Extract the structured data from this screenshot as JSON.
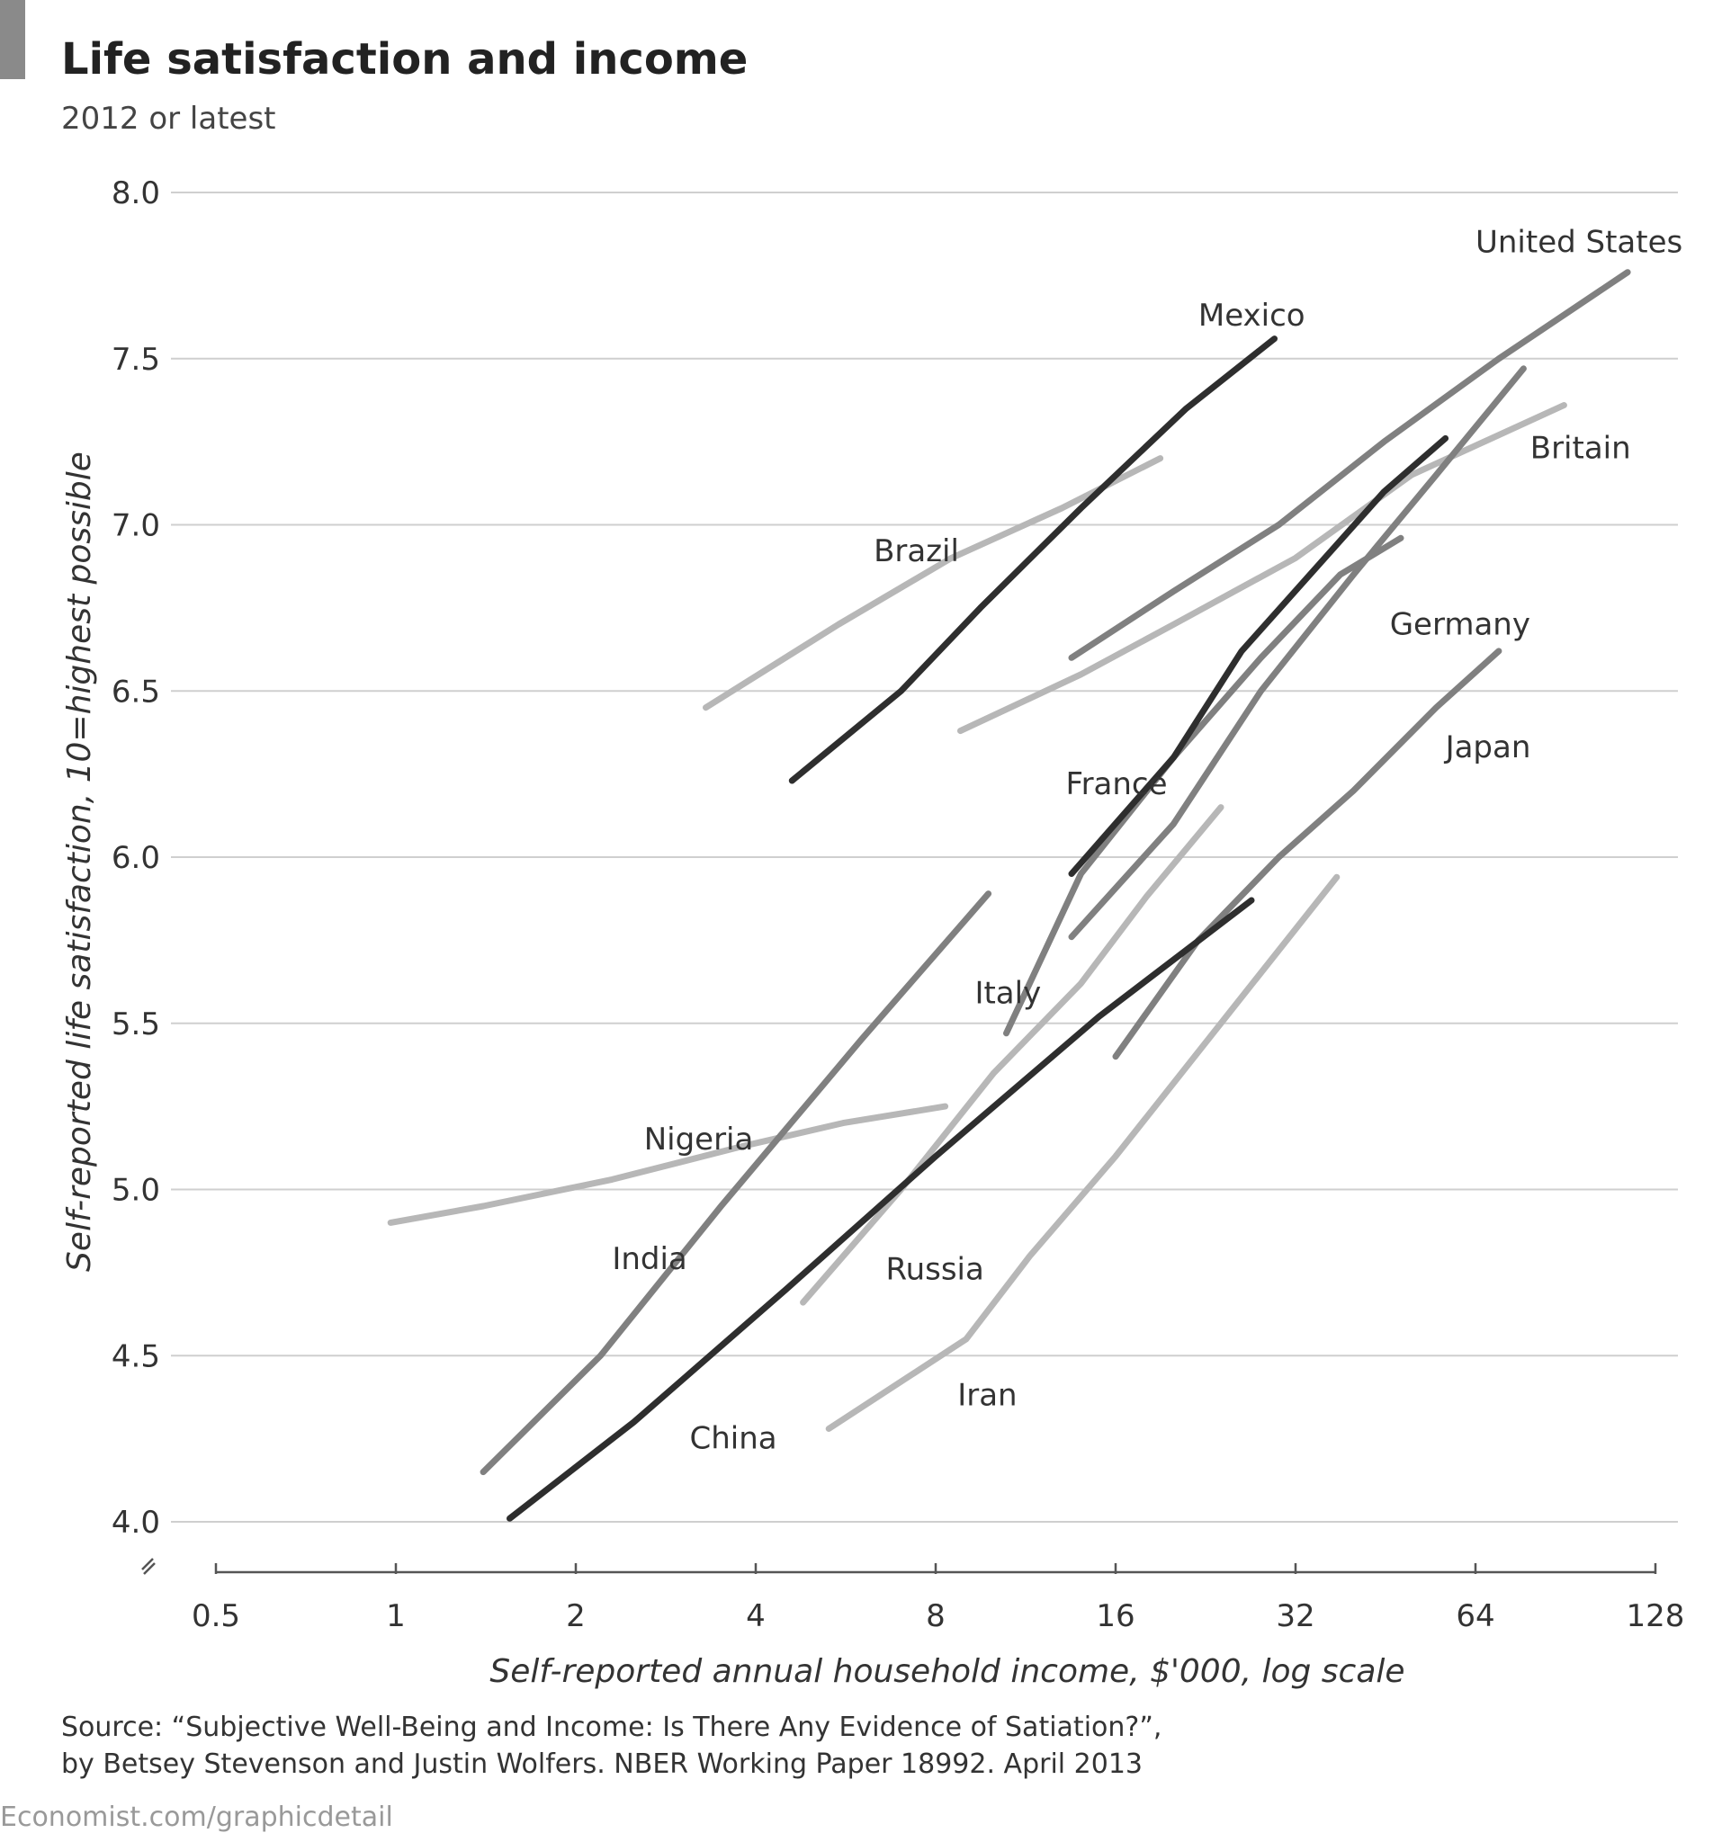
{
  "header": {
    "title": "Life satisfaction and income",
    "subtitle": "2012 or latest"
  },
  "source_note": {
    "line1": "Source: “Subjective Well-Being and Income: Is There Any Evidence of Satiation?”,",
    "line2": "by Betsey Stevenson and Justin Wolfers. NBER Working Paper 18992. April 2013"
  },
  "footer": {
    "credit": "Economist.com/graphicdetail"
  },
  "colors": {
    "dark": "#2e2e2e",
    "mid": "#808080",
    "light": "#b7b7b7",
    "grid": "#cfcfcf",
    "text": "#333333"
  },
  "chart_data": {
    "type": "line",
    "xlabel": "Self-reported annual household income, $'000, log scale",
    "ylabel": "Self-reported life satisfaction, 10=highest possible",
    "x_scale": "log2",
    "xlim": [
      0.5,
      128
    ],
    "ylim": [
      4.0,
      8.0
    ],
    "x_ticks": [
      0.5,
      1,
      2,
      4,
      8,
      16,
      32,
      64,
      128
    ],
    "x_tick_labels": [
      "0.5",
      "1",
      "2",
      "4",
      "8",
      "16",
      "32",
      "64",
      "128"
    ],
    "y_ticks": [
      4.0,
      4.5,
      5.0,
      5.5,
      6.0,
      6.5,
      7.0,
      7.5,
      8.0
    ],
    "y_tick_labels": [
      "4.0",
      "4.5",
      "5.0",
      "5.5",
      "6.0",
      "6.5",
      "7.0",
      "7.5",
      "8.0"
    ],
    "grid": true,
    "series": [
      {
        "name": "United States",
        "tone": "mid",
        "x": [
          13.5,
          20,
          30,
          45,
          70,
          115
        ],
        "y": [
          6.6,
          6.8,
          7.0,
          7.25,
          7.5,
          7.76
        ]
      },
      {
        "name": "Mexico",
        "tone": "dark",
        "x": [
          4.6,
          7,
          9.5,
          14,
          21,
          29.5
        ],
        "y": [
          6.23,
          6.5,
          6.75,
          7.05,
          7.35,
          7.56
        ]
      },
      {
        "name": "Britain",
        "tone": "light",
        "x": [
          8.8,
          14,
          20,
          32,
          50,
          90
        ],
        "y": [
          6.38,
          6.55,
          6.7,
          6.9,
          7.15,
          7.36
        ]
      },
      {
        "name": "Brazil",
        "tone": "light",
        "x": [
          3.3,
          5.5,
          8.5,
          13,
          19
        ],
        "y": [
          6.45,
          6.7,
          6.9,
          7.05,
          7.2
        ]
      },
      {
        "name": "Germany",
        "tone": "mid",
        "x": [
          13.5,
          20,
          28,
          40,
          55,
          77
        ],
        "y": [
          5.76,
          6.1,
          6.5,
          6.85,
          7.15,
          7.47
        ]
      },
      {
        "name": "France",
        "tone": "dark",
        "x": [
          13.5,
          20,
          26,
          35,
          45,
          57
        ],
        "y": [
          5.95,
          6.3,
          6.62,
          6.88,
          7.1,
          7.26
        ]
      },
      {
        "name": "Japan",
        "tone": "mid",
        "x": [
          16,
          22,
          30,
          40,
          55,
          70
        ],
        "y": [
          5.4,
          5.75,
          6.0,
          6.2,
          6.45,
          6.62
        ]
      },
      {
        "name": "Italy",
        "tone": "mid",
        "x": [
          10.5,
          14,
          20,
          28,
          38,
          48
        ],
        "y": [
          5.47,
          5.95,
          6.3,
          6.6,
          6.85,
          6.96
        ]
      },
      {
        "name": "India",
        "tone": "mid",
        "x": [
          1.4,
          2.2,
          3.5,
          6,
          9.8
        ],
        "y": [
          4.15,
          4.5,
          4.95,
          5.45,
          5.89
        ]
      },
      {
        "name": "China",
        "tone": "dark",
        "x": [
          1.55,
          2.5,
          4.5,
          8,
          15,
          27
        ],
        "y": [
          4.01,
          4.3,
          4.7,
          5.1,
          5.52,
          5.87
        ]
      },
      {
        "name": "Russia",
        "tone": "light",
        "x": [
          4.8,
          7,
          10,
          14,
          18,
          24
        ],
        "y": [
          4.66,
          5.0,
          5.35,
          5.62,
          5.88,
          6.15
        ]
      },
      {
        "name": "Nigeria",
        "tone": "light",
        "x": [
          0.98,
          1.4,
          2.3,
          3.8,
          5.6,
          8.3
        ],
        "y": [
          4.9,
          4.95,
          5.03,
          5.13,
          5.2,
          5.25
        ]
      },
      {
        "name": "Iran",
        "tone": "light",
        "x": [
          5.3,
          9.0,
          11.5,
          16,
          24,
          37.5
        ],
        "y": [
          4.28,
          4.55,
          4.8,
          5.1,
          5.5,
          5.94
        ]
      }
    ],
    "labels": [
      {
        "text": "United States",
        "x": 64,
        "y": 7.82
      },
      {
        "text": "Mexico",
        "x": 22,
        "y": 7.6
      },
      {
        "text": "Britain",
        "x": 79,
        "y": 7.2
      },
      {
        "text": "Brazil",
        "x": 6.3,
        "y": 6.89
      },
      {
        "text": "Germany",
        "x": 46,
        "y": 6.67
      },
      {
        "text": "France",
        "x": 13.2,
        "y": 6.19
      },
      {
        "text": "Japan",
        "x": 57,
        "y": 6.3
      },
      {
        "text": "Italy",
        "x": 9.3,
        "y": 5.56
      },
      {
        "text": "Nigeria",
        "x": 2.6,
        "y": 5.12
      },
      {
        "text": "India",
        "x": 2.3,
        "y": 4.76
      },
      {
        "text": "Russia",
        "x": 6.6,
        "y": 4.73
      },
      {
        "text": "Iran",
        "x": 8.7,
        "y": 4.35
      },
      {
        "text": "China",
        "x": 3.1,
        "y": 4.22
      }
    ]
  }
}
